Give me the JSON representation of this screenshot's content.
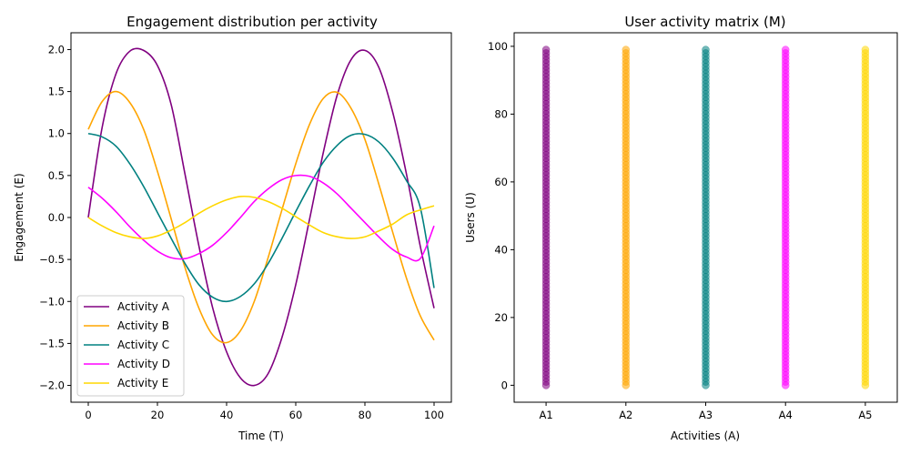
{
  "chart_data": [
    {
      "type": "line",
      "title": "Engagement distribution per activity",
      "xlabel": "Time (T)",
      "ylabel": "Engagement (E)",
      "xlim": [
        -5,
        105
      ],
      "ylim": [
        -2.2,
        2.2
      ],
      "xticks": [
        0,
        20,
        40,
        60,
        80,
        100
      ],
      "yticks": [
        -2.0,
        -1.5,
        -1.0,
        -0.5,
        0.0,
        0.5,
        1.0,
        1.5,
        2.0
      ],
      "xtick_labels": [
        "0",
        "20",
        "40",
        "60",
        "80",
        "100"
      ],
      "ytick_labels": [
        "−2.0",
        "−1.5",
        "−1.0",
        "−0.5",
        "0.0",
        "0.5",
        "1.0",
        "1.5",
        "2.0"
      ],
      "legend": "lower-left",
      "grid": false,
      "x": [
        0,
        4,
        8,
        12,
        16,
        20,
        24,
        28,
        32,
        36,
        40,
        44,
        48,
        52,
        56,
        60,
        64,
        68,
        72,
        76,
        80,
        84,
        88,
        92,
        96,
        100
      ],
      "series": [
        {
          "name": "Activity A",
          "color": "#800080",
          "values": [
            0.0,
            1.07,
            1.71,
            1.98,
            1.99,
            1.81,
            1.34,
            0.51,
            -0.34,
            -1.08,
            -1.6,
            -1.91,
            -2.0,
            -1.86,
            -1.43,
            -0.8,
            -0.02,
            0.78,
            1.46,
            1.88,
            1.99,
            1.79,
            1.26,
            0.52,
            -0.34,
            -1.08
          ]
        },
        {
          "name": "Activity B",
          "color": "#FFA500",
          "values": [
            1.05,
            1.38,
            1.5,
            1.37,
            1.05,
            0.55,
            -0.02,
            -0.6,
            -1.08,
            -1.4,
            -1.49,
            -1.35,
            -1.0,
            -0.48,
            0.09,
            0.64,
            1.11,
            1.42,
            1.49,
            1.3,
            0.93,
            0.4,
            -0.17,
            -0.72,
            -1.17,
            -1.46
          ]
        },
        {
          "name": "Activity C",
          "color": "#008080",
          "values": [
            1.0,
            0.96,
            0.85,
            0.64,
            0.37,
            0.06,
            -0.25,
            -0.55,
            -0.8,
            -0.95,
            -1.0,
            -0.94,
            -0.79,
            -0.55,
            -0.25,
            0.07,
            0.38,
            0.66,
            0.86,
            0.98,
            0.99,
            0.9,
            0.71,
            0.44,
            0.12,
            -0.84
          ]
        },
        {
          "name": "Activity D",
          "color": "#FF00FF",
          "values": [
            0.36,
            0.23,
            0.07,
            -0.11,
            -0.27,
            -0.4,
            -0.48,
            -0.49,
            -0.43,
            -0.33,
            -0.18,
            0.0,
            0.19,
            0.34,
            0.45,
            0.5,
            0.49,
            0.41,
            0.28,
            0.11,
            -0.06,
            -0.23,
            -0.38,
            -0.47,
            -0.49,
            -0.1
          ]
        },
        {
          "name": "Activity E",
          "color": "#FFD700",
          "values": [
            0.0,
            -0.1,
            -0.18,
            -0.23,
            -0.25,
            -0.22,
            -0.15,
            -0.06,
            0.05,
            0.14,
            0.21,
            0.25,
            0.24,
            0.19,
            0.11,
            0.01,
            -0.09,
            -0.18,
            -0.23,
            -0.25,
            -0.23,
            -0.16,
            -0.08,
            0.03,
            0.09,
            0.14
          ]
        }
      ]
    },
    {
      "type": "scatter",
      "title": "User activity matrix (M)",
      "xlabel": "Activities (A)",
      "ylabel": "Users (U)",
      "xlim": [
        0.6,
        5.4
      ],
      "ylim": [
        -5,
        104
      ],
      "categories": [
        "A1",
        "A2",
        "A3",
        "A4",
        "A5"
      ],
      "yticks": [
        0,
        20,
        40,
        60,
        80,
        100
      ],
      "ytick_labels": [
        "0",
        "20",
        "40",
        "60",
        "80",
        "100"
      ],
      "grid": false,
      "users": {
        "min": 0,
        "max": 99
      },
      "series": [
        {
          "category": "A1",
          "color": "#800080"
        },
        {
          "category": "A2",
          "color": "#FFA500"
        },
        {
          "category": "A3",
          "color": "#008080"
        },
        {
          "category": "A4",
          "color": "#FF00FF"
        },
        {
          "category": "A5",
          "color": "#FFD700"
        }
      ]
    }
  ]
}
